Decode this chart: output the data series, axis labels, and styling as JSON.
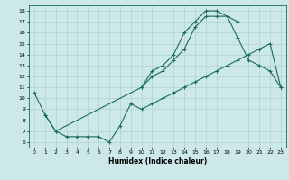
{
  "xlabel": "Humidex (Indice chaleur)",
  "bg_color": "#cce8e8",
  "line_color": "#1a6b5a",
  "grid_color": "#aacece",
  "xlim": [
    -0.5,
    23.5
  ],
  "ylim": [
    5.5,
    18.5
  ],
  "xticks": [
    0,
    1,
    2,
    3,
    4,
    5,
    6,
    7,
    8,
    9,
    10,
    11,
    12,
    13,
    14,
    15,
    16,
    17,
    18,
    19,
    20,
    21,
    22,
    23
  ],
  "yticks": [
    6,
    7,
    8,
    9,
    10,
    11,
    12,
    13,
    14,
    15,
    16,
    17,
    18
  ],
  "line1_x": [
    0,
    1,
    2,
    10,
    11,
    12,
    13,
    14,
    15,
    16,
    17,
    18,
    19
  ],
  "line1_y": [
    10.5,
    8.5,
    7.0,
    11.0,
    12.0,
    12.5,
    13.5,
    14.5,
    16.5,
    17.5,
    17.5,
    17.5,
    17.0
  ],
  "line2_x": [
    10,
    11,
    12,
    13,
    14,
    15,
    16,
    17,
    18,
    19,
    20,
    21,
    22,
    23
  ],
  "line2_y": [
    11.0,
    12.5,
    13.0,
    14.0,
    16.0,
    17.0,
    18.0,
    18.0,
    17.5,
    15.5,
    13.5,
    13.0,
    12.5,
    11.0
  ],
  "line3_x": [
    1,
    2,
    3,
    4,
    5,
    6,
    7,
    8,
    9,
    10,
    11,
    12,
    13,
    14,
    15,
    16,
    17,
    18,
    19,
    20,
    21,
    22,
    23
  ],
  "line3_y": [
    8.5,
    7.0,
    6.5,
    6.5,
    6.5,
    6.5,
    6.0,
    7.5,
    9.5,
    9.0,
    9.5,
    10.0,
    10.5,
    11.0,
    11.5,
    12.0,
    12.5,
    13.0,
    13.5,
    14.0,
    14.5,
    15.0,
    11.0
  ],
  "figsize": [
    3.2,
    2.0
  ],
  "dpi": 100
}
